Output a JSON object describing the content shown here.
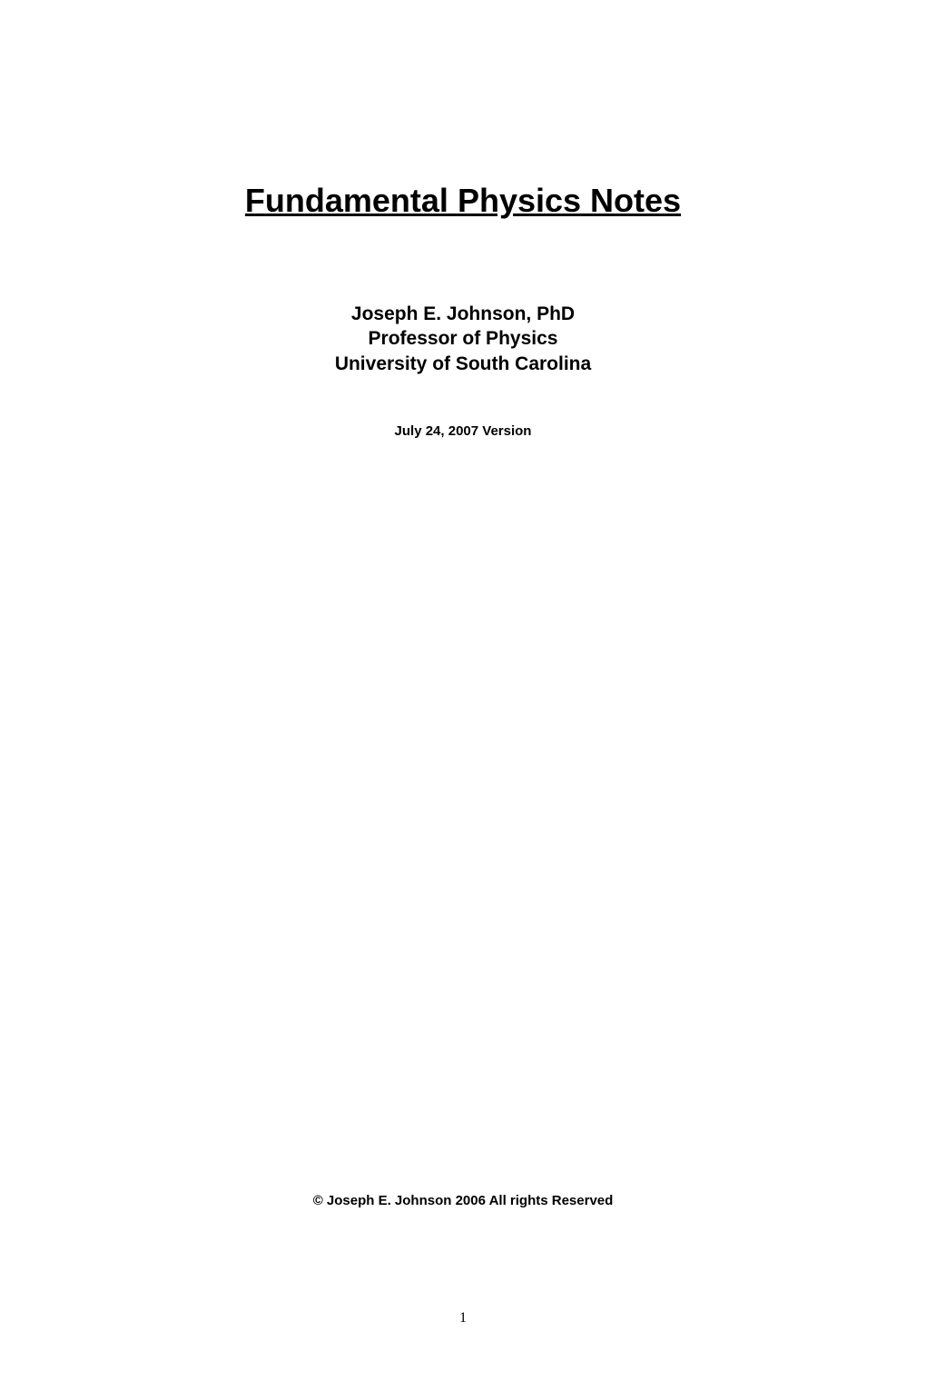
{
  "title": "Fundamental Physics Notes",
  "author": {
    "name": "Joseph E. Johnson, PhD",
    "title": "Professor of Physics",
    "institution": "University of South Carolina"
  },
  "version": "July 24, 2007 Version",
  "copyright": "© Joseph E. Johnson 2006 All rights Reserved",
  "page_number": "1",
  "style": {
    "background_color": "#ffffff",
    "text_color": "#000000",
    "title_fontsize": 36,
    "author_fontsize": 21,
    "version_fontsize": 15,
    "copyright_fontsize": 15,
    "page_number_fontsize": 16,
    "title_font_family": "Arial",
    "page_number_font_family": "Times New Roman"
  }
}
